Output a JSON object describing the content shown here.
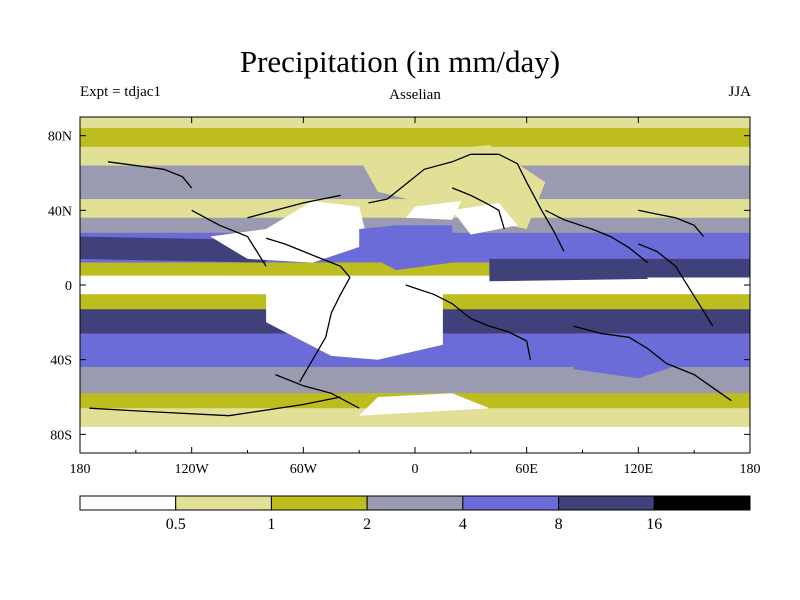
{
  "chart_data": {
    "type": "heatmap",
    "title": "Precipitation (in mm/day)",
    "left_label": "Expt = tdjac1",
    "center_label": "Asselian",
    "right_label": "JJA",
    "x_ticks": [
      "180",
      "120W",
      "60W",
      "0",
      "60E",
      "120E",
      "180"
    ],
    "x_tick_values": [
      -180,
      -120,
      -60,
      0,
      60,
      120,
      180
    ],
    "y_ticks": [
      "80N",
      "40N",
      "0",
      "40S",
      "80S"
    ],
    "y_tick_values": [
      80,
      40,
      0,
      -40,
      -80
    ],
    "xlim": [
      -180,
      180
    ],
    "ylim": [
      -90,
      90
    ],
    "levels": [
      "0.5",
      "1",
      "2",
      "4",
      "8",
      "16"
    ],
    "level_values": [
      0.5,
      1,
      2,
      4,
      8,
      16
    ],
    "level_colors": [
      "#ffffff",
      "#e2e097",
      "#bdbd20",
      "#9a9ab0",
      "#6c6cd8",
      "#40407a",
      "#000000"
    ],
    "zonal_bands": [
      {
        "lat_from": 90,
        "lat_to": 84,
        "category": 1
      },
      {
        "lat_from": 84,
        "lat_to": 74,
        "category": 2
      },
      {
        "lat_from": 74,
        "lat_to": 64,
        "category": 1
      },
      {
        "lat_from": 64,
        "lat_to": 46,
        "category": 3
      },
      {
        "lat_from": 46,
        "lat_to": 36,
        "category": 1
      },
      {
        "lat_from": 36,
        "lat_to": 28,
        "category": 3
      },
      {
        "lat_from": 28,
        "lat_to": 12,
        "category": 4
      },
      {
        "lat_from": 12,
        "lat_to": 5,
        "category": 2
      },
      {
        "lat_from": 5,
        "lat_to": -5,
        "category": 0
      },
      {
        "lat_from": -5,
        "lat_to": -13,
        "category": 2
      },
      {
        "lat_from": -13,
        "lat_to": -26,
        "category": 5
      },
      {
        "lat_from": -26,
        "lat_to": -44,
        "category": 4
      },
      {
        "lat_from": -44,
        "lat_to": -58,
        "category": 3
      },
      {
        "lat_from": -58,
        "lat_to": -66,
        "category": 2
      },
      {
        "lat_from": -66,
        "lat_to": -76,
        "category": 1
      },
      {
        "lat_from": -76,
        "lat_to": -90,
        "category": 0
      }
    ],
    "regions": [
      {
        "category": 5,
        "points": [
          [
            -180,
            26
          ],
          [
            -80,
            24
          ],
          [
            -80,
            12
          ],
          [
            -180,
            14
          ]
        ]
      },
      {
        "category": 5,
        "points": [
          [
            40,
            14
          ],
          [
            180,
            14
          ],
          [
            180,
            4
          ],
          [
            40,
            2
          ]
        ]
      },
      {
        "category": 0,
        "points": [
          [
            125,
            4
          ],
          [
            180,
            4
          ],
          [
            180,
            -4
          ],
          [
            125,
            -4
          ]
        ]
      },
      {
        "category": 0,
        "points": [
          [
            -110,
            26
          ],
          [
            -80,
            30
          ],
          [
            -55,
            45
          ],
          [
            -30,
            42
          ],
          [
            -25,
            22
          ],
          [
            -55,
            12
          ],
          [
            -90,
            14
          ]
        ]
      },
      {
        "category": 0,
        "points": [
          [
            -80,
            -2
          ],
          [
            -45,
            0
          ],
          [
            -10,
            2
          ],
          [
            15,
            -4
          ],
          [
            15,
            -32
          ],
          [
            -20,
            -40
          ],
          [
            -45,
            -38
          ],
          [
            -80,
            -20
          ]
        ]
      },
      {
        "category": 4,
        "points": [
          [
            -30,
            30
          ],
          [
            -10,
            32
          ],
          [
            20,
            32
          ],
          [
            20,
            12
          ],
          [
            -10,
            8
          ],
          [
            -30,
            18
          ]
        ]
      },
      {
        "category": 1,
        "points": [
          [
            -30,
            68
          ],
          [
            40,
            75
          ],
          [
            70,
            55
          ],
          [
            60,
            30
          ],
          [
            20,
            38
          ],
          [
            0,
            45
          ],
          [
            -20,
            50
          ]
        ]
      },
      {
        "category": 0,
        "points": [
          [
            20,
            40
          ],
          [
            45,
            44
          ],
          [
            55,
            32
          ],
          [
            30,
            27
          ]
        ]
      },
      {
        "category": 0,
        "points": [
          [
            0,
            42
          ],
          [
            25,
            45
          ],
          [
            20,
            35
          ],
          [
            -5,
            36
          ]
        ]
      },
      {
        "category": 4,
        "points": [
          [
            90,
            -30
          ],
          [
            140,
            -28
          ],
          [
            150,
            -40
          ],
          [
            120,
            -50
          ],
          [
            85,
            -45
          ]
        ]
      },
      {
        "category": 0,
        "points": [
          [
            -20,
            -60
          ],
          [
            20,
            -58
          ],
          [
            40,
            -66
          ],
          [
            -30,
            -70
          ]
        ]
      }
    ],
    "coastlines": [
      [
        [
          -165,
          66
        ],
        [
          -150,
          64
        ],
        [
          -135,
          62
        ],
        [
          -125,
          58
        ],
        [
          -120,
          52
        ]
      ],
      [
        [
          -90,
          36
        ],
        [
          -75,
          40
        ],
        [
          -60,
          44
        ],
        [
          -50,
          46
        ],
        [
          -40,
          48
        ]
      ],
      [
        [
          -80,
          25
        ],
        [
          -70,
          22
        ],
        [
          -60,
          18
        ],
        [
          -50,
          14
        ],
        [
          -40,
          10
        ],
        [
          -35,
          4
        ],
        [
          -40,
          -5
        ],
        [
          -45,
          -15
        ],
        [
          -48,
          -28
        ],
        [
          -55,
          -40
        ],
        [
          -62,
          -52
        ]
      ],
      [
        [
          -120,
          40
        ],
        [
          -105,
          32
        ],
        [
          -90,
          26
        ],
        [
          -85,
          18
        ],
        [
          -80,
          10
        ]
      ],
      [
        [
          -25,
          44
        ],
        [
          -15,
          46
        ],
        [
          -5,
          54
        ],
        [
          5,
          62
        ],
        [
          20,
          66
        ],
        [
          30,
          70
        ],
        [
          45,
          70
        ],
        [
          55,
          65
        ],
        [
          60,
          55
        ],
        [
          68,
          40
        ],
        [
          75,
          28
        ],
        [
          80,
          18
        ]
      ],
      [
        [
          20,
          52
        ],
        [
          30,
          48
        ],
        [
          38,
          44
        ],
        [
          45,
          40
        ],
        [
          48,
          30
        ]
      ],
      [
        [
          -5,
          0
        ],
        [
          10,
          -5
        ],
        [
          20,
          -10
        ],
        [
          30,
          -18
        ],
        [
          40,
          -22
        ],
        [
          50,
          -25
        ],
        [
          60,
          -30
        ],
        [
          62,
          -40
        ]
      ],
      [
        [
          70,
          40
        ],
        [
          80,
          35
        ],
        [
          95,
          30
        ],
        [
          105,
          26
        ],
        [
          115,
          20
        ],
        [
          125,
          12
        ]
      ],
      [
        [
          120,
          40
        ],
        [
          130,
          38
        ],
        [
          140,
          36
        ],
        [
          150,
          32
        ],
        [
          155,
          26
        ]
      ],
      [
        [
          85,
          -22
        ],
        [
          100,
          -26
        ],
        [
          115,
          -28
        ],
        [
          125,
          -34
        ],
        [
          135,
          -42
        ],
        [
          150,
          -48
        ],
        [
          160,
          -55
        ],
        [
          170,
          -62
        ]
      ],
      [
        [
          120,
          22
        ],
        [
          130,
          18
        ],
        [
          140,
          10
        ],
        [
          145,
          2
        ],
        [
          150,
          -6
        ],
        [
          155,
          -14
        ],
        [
          160,
          -22
        ]
      ],
      [
        [
          -175,
          -66
        ],
        [
          -140,
          -68
        ],
        [
          -100,
          -70
        ],
        [
          -60,
          -64
        ],
        [
          -40,
          -60
        ]
      ],
      [
        [
          -75,
          -48
        ],
        [
          -60,
          -54
        ],
        [
          -45,
          -58
        ],
        [
          -30,
          -66
        ]
      ]
    ]
  }
}
